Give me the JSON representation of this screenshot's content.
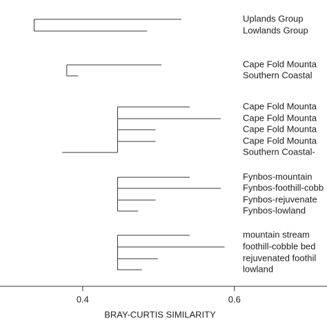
{
  "chart_data": {
    "type": "dendrogram",
    "xlabel": "BRAY-CURTIS SIMILARITY",
    "xlim": [
      0.291,
      0.722
    ],
    "xticks": [
      0.4,
      0.6
    ],
    "clusters": [
      {
        "merge": 0.336,
        "leaves": [
          {
            "label": "Uplands Group",
            "value": 0.53
          },
          {
            "label": "Lowlands Group",
            "value": 0.485
          }
        ]
      },
      {
        "merge": 0.379,
        "leaves": [
          {
            "label": "Cape Fold Mounta",
            "value": 0.504
          },
          {
            "label": "Southern Coastal",
            "value": 0.394
          }
        ]
      },
      {
        "merge": 0.446,
        "leaves": [
          {
            "label": "Cape Fold Mounta",
            "value": 0.541
          },
          {
            "label": "Cape Fold Mounta",
            "value": 0.582
          },
          {
            "label": "Cape Fold Mounta",
            "value": 0.496
          },
          {
            "label": "Cape Fold Mounta",
            "value": 0.496
          },
          {
            "label": "Southern Coastal-",
            "value": 0.373
          }
        ]
      },
      {
        "merge": 0.446,
        "leaves": [
          {
            "label": "Fynbos-mountain",
            "value": 0.541
          },
          {
            "label": "Fynbos-foothill-cobb",
            "value": 0.582
          },
          {
            "label": "Fynbos-rejuvenate",
            "value": 0.496
          },
          {
            "label": "Fynbos-lowland",
            "value": 0.473
          }
        ]
      },
      {
        "merge": 0.446,
        "leaves": [
          {
            "label": "mountain stream",
            "value": 0.541
          },
          {
            "label": "foothill-cobble bed",
            "value": 0.587
          },
          {
            "label": "rejuvenated foothil",
            "value": 0.499
          },
          {
            "label": "lowland",
            "value": 0.478
          }
        ]
      }
    ]
  }
}
